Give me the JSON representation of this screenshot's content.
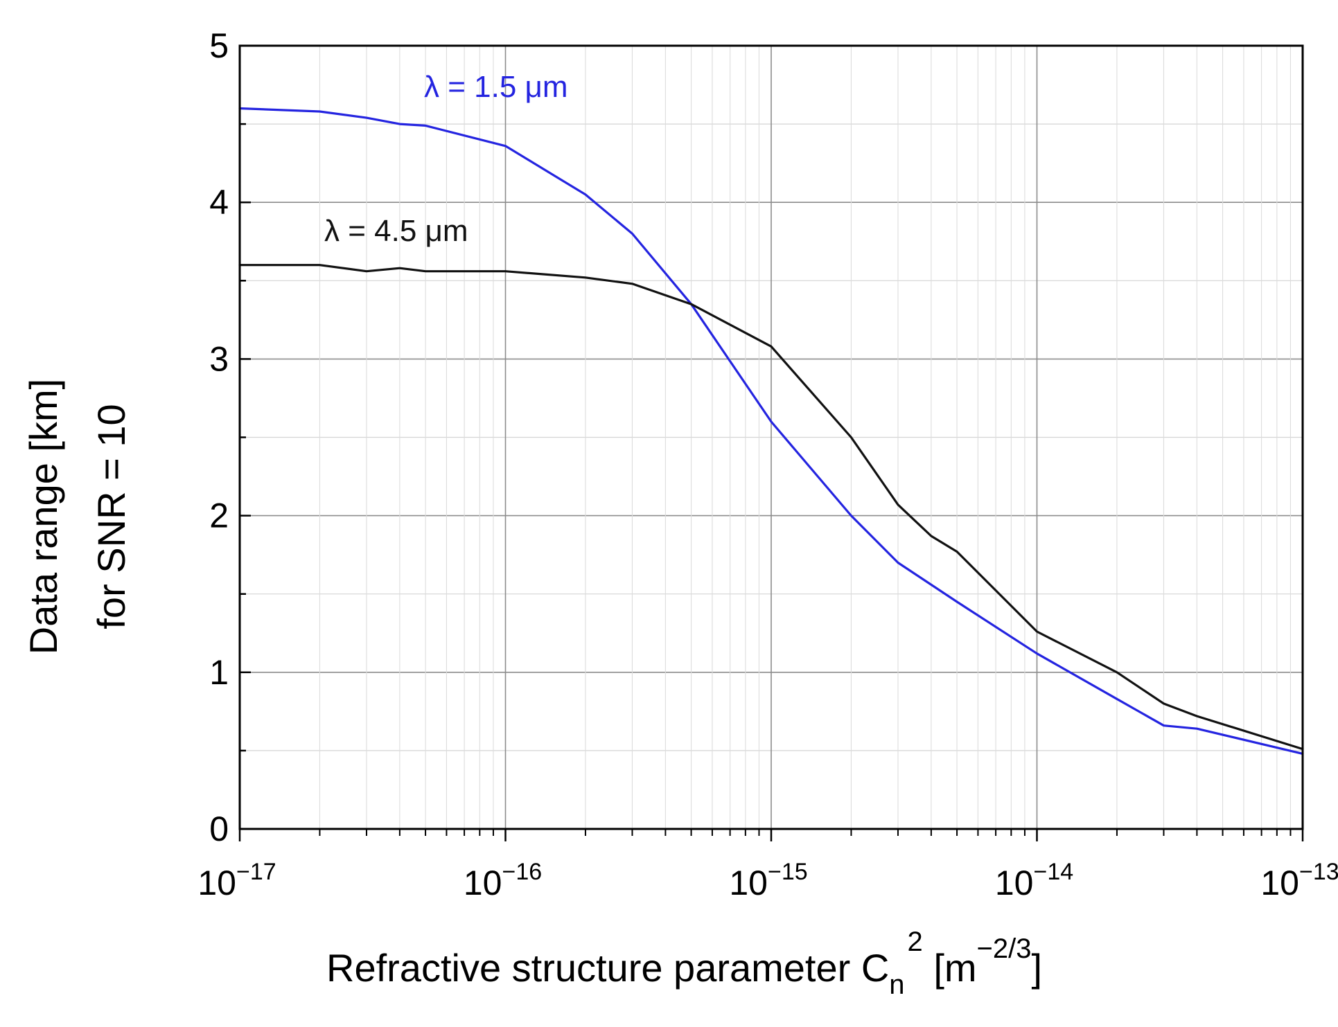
{
  "chart_data": {
    "type": "line",
    "xscale": "log",
    "xlim": [
      1e-17,
      1e-13
    ],
    "ylim": [
      0,
      5
    ],
    "grid": true,
    "xticks": [
      {
        "base": "10",
        "exp": "−17",
        "value": 1e-17
      },
      {
        "base": "10",
        "exp": "−16",
        "value": 1e-16
      },
      {
        "base": "10",
        "exp": "−15",
        "value": 1e-15
      },
      {
        "base": "10",
        "exp": "−14",
        "value": 1e-14
      },
      {
        "base": "10",
        "exp": "−13",
        "value": 1e-13
      }
    ],
    "yticks": [
      "0",
      "1",
      "2",
      "3",
      "4",
      "5"
    ],
    "ylabel": {
      "line1": "Data range [km]",
      "line2": "for SNR = 10"
    },
    "xlabel": {
      "main": "Refractive structure parameter C",
      "sub": "n",
      "sup": "2",
      "unit_open": " [m",
      "unit_sup": "−2/3",
      "unit_close": "]"
    },
    "series": [
      {
        "name": "λ = 1.5 μm",
        "color": "#2424e0",
        "x": [
          1e-17,
          2e-17,
          3e-17,
          4e-17,
          5e-17,
          1e-16,
          2e-16,
          3e-16,
          5e-16,
          1e-15,
          2e-15,
          3e-15,
          5e-15,
          1e-14,
          2e-14,
          3e-14,
          4e-14,
          1e-13
        ],
        "y": [
          4.6,
          4.58,
          4.54,
          4.5,
          4.49,
          4.36,
          4.05,
          3.8,
          3.35,
          2.6,
          2.0,
          1.7,
          1.45,
          1.12,
          0.83,
          0.66,
          0.64,
          0.48
        ]
      },
      {
        "name": "λ = 4.5 μm",
        "color": "#111111",
        "x": [
          1e-17,
          2e-17,
          3e-17,
          4e-17,
          5e-17,
          1e-16,
          2e-16,
          3e-16,
          5e-16,
          1e-15,
          2e-15,
          3e-15,
          4e-15,
          5e-15,
          1e-14,
          2e-14,
          3e-14,
          4e-14,
          1e-13
        ],
        "y": [
          3.6,
          3.6,
          3.56,
          3.58,
          3.56,
          3.56,
          3.52,
          3.48,
          3.35,
          3.08,
          2.5,
          2.07,
          1.87,
          1.77,
          1.26,
          1.0,
          0.8,
          0.72,
          0.51
        ]
      }
    ]
  }
}
